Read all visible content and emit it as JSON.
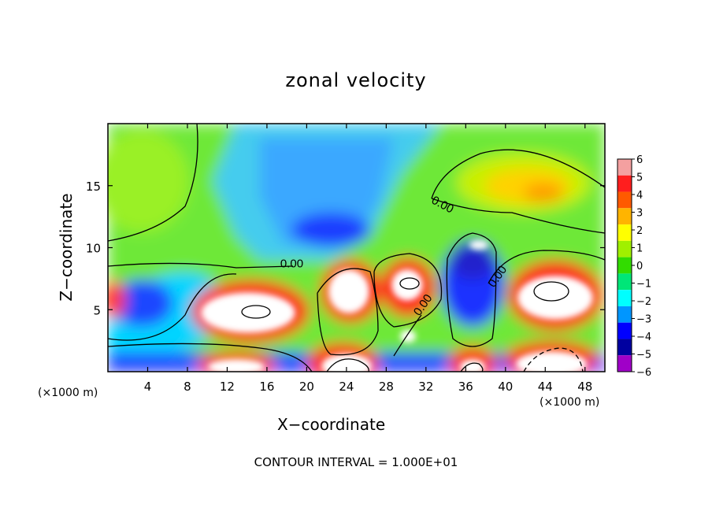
{
  "chart_data": {
    "type": "heatmap",
    "title": "zonal velocity",
    "xlabel": "X−coordinate",
    "ylabel": "Z−coordinate",
    "x_unit": "(×1000 m)",
    "y_unit": "(×1000 m)",
    "xlim": [
      0,
      50
    ],
    "ylim": [
      0,
      20
    ],
    "x_ticks": [
      4,
      8,
      12,
      16,
      20,
      24,
      28,
      32,
      36,
      40,
      44,
      48
    ],
    "y_ticks": [
      5,
      10,
      15
    ],
    "colorbar": {
      "min": -6,
      "max": 6,
      "ticks": [
        6,
        5,
        4,
        3,
        2,
        1,
        0,
        -1,
        -2,
        -3,
        -4,
        -5,
        -6
      ],
      "colors": [
        "#f4a0a0",
        "#ff1e1e",
        "#ff5a00",
        "#ffb400",
        "#ffff00",
        "#a0f000",
        "#32dc00",
        "#00e678",
        "#00ffff",
        "#0096ff",
        "#0000ff",
        "#0000a0",
        "#a000c8"
      ]
    },
    "contour_labels": [
      {
        "text": "0.00",
        "x": 18.5,
        "z": 8.4
      },
      {
        "text": "0.00",
        "x": 33.5,
        "z": 13.2
      },
      {
        "text": "0.00",
        "x": 32.0,
        "z": 5.2
      },
      {
        "text": "0.00",
        "x": 39.5,
        "z": 7.5
      }
    ],
    "contour_interval_text": "CONTOUR INTERVAL = 1.000E+01"
  }
}
